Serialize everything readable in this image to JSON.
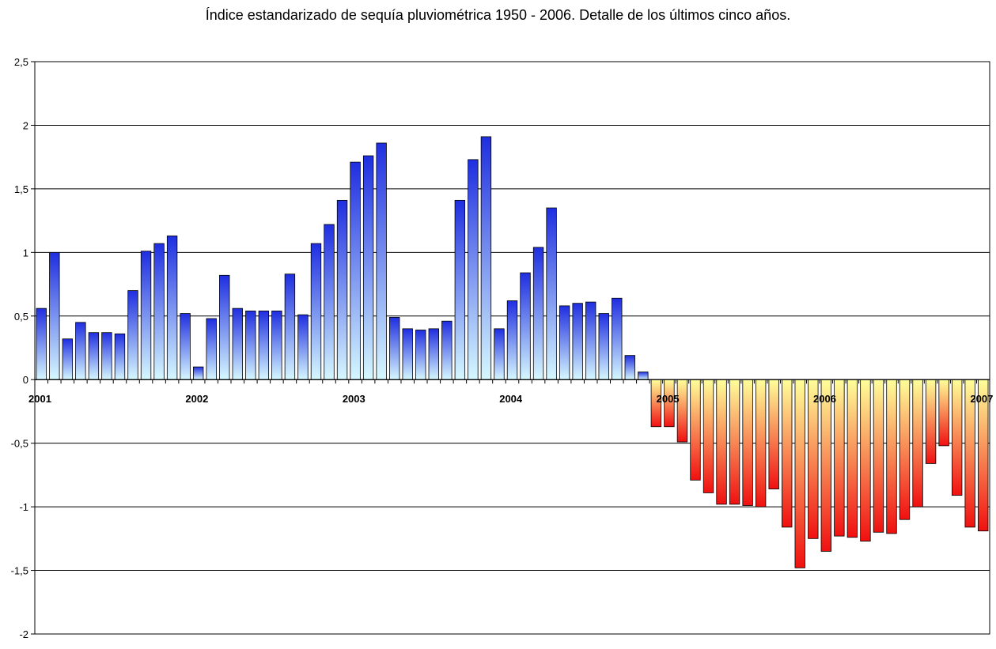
{
  "chart_data": {
    "type": "bar",
    "title": "Índice estandarizado de sequía pluviométrica 1950 - 2006. Detalle de los últimos cinco años.",
    "xlabel": "",
    "ylabel": "",
    "ylim": [
      -2,
      2.5
    ],
    "yticks": [
      "-2",
      "-1,5",
      "-1",
      "-0,5",
      "0",
      "0,5",
      "1",
      "1,5",
      "2",
      "2,5"
    ],
    "year_labels": [
      "2001",
      "2002",
      "2003",
      "2004",
      "2005",
      "2006",
      "2007"
    ],
    "grid": true,
    "legend": "none",
    "positive_gradient": [
      "#1f2ee0",
      "#d6f8ff"
    ],
    "negative_gradient": [
      "#ffff9a",
      "#f01010"
    ],
    "values": [
      0.56,
      1.0,
      0.32,
      0.45,
      0.37,
      0.37,
      0.36,
      0.7,
      1.01,
      1.07,
      1.13,
      0.52,
      0.1,
      0.48,
      0.82,
      0.56,
      0.54,
      0.54,
      0.54,
      0.83,
      0.51,
      1.07,
      1.22,
      1.41,
      1.71,
      1.76,
      1.86,
      0.49,
      0.4,
      0.39,
      0.4,
      0.46,
      1.41,
      1.73,
      1.91,
      0.4,
      0.62,
      0.84,
      1.04,
      1.35,
      0.58,
      0.6,
      0.61,
      0.52,
      0.64,
      0.19,
      0.06,
      -0.37,
      -0.37,
      -0.49,
      -0.79,
      -0.89,
      -0.98,
      -0.98,
      -0.99,
      -1.0,
      -0.86,
      -1.16,
      -1.48,
      -1.25,
      -1.35,
      -1.23,
      -1.24,
      -1.27,
      -1.2,
      -1.21,
      -1.1,
      -1.0,
      -0.66,
      -0.52,
      -0.91,
      -1.16,
      -1.19
    ]
  }
}
